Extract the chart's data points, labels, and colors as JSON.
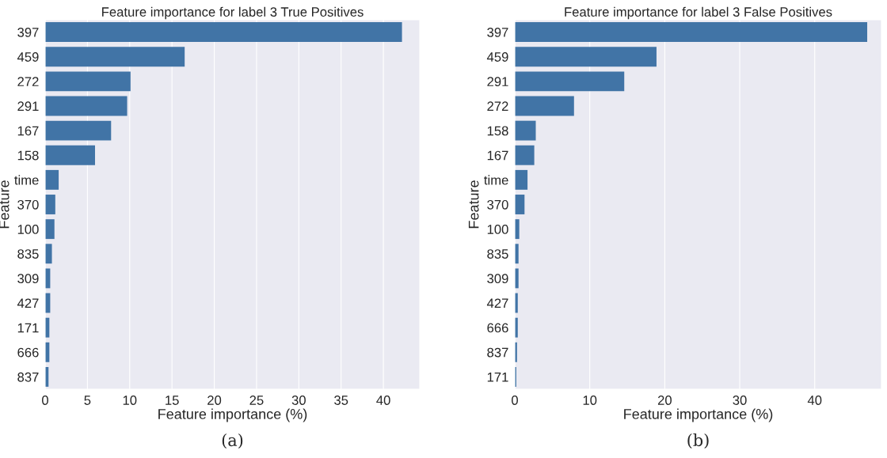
{
  "chart_data": [
    {
      "type": "bar",
      "orientation": "horizontal",
      "title": "Feature importance for label 3 True Positives",
      "xlabel": "Feature importance (%)",
      "ylabel": "Feature",
      "categories": [
        "397",
        "459",
        "272",
        "291",
        "167",
        "158",
        "time",
        "370",
        "100",
        "835",
        "309",
        "427",
        "171",
        "666",
        "837"
      ],
      "values": [
        42.2,
        16.5,
        10.1,
        9.7,
        7.8,
        5.9,
        1.6,
        1.2,
        1.1,
        0.8,
        0.6,
        0.6,
        0.5,
        0.5,
        0.4
      ],
      "color": "#4174a6",
      "xlim": [
        0,
        44.3
      ],
      "xticks": [
        0,
        5,
        10,
        15,
        20,
        25,
        30,
        35,
        40
      ],
      "grid": "x",
      "annotations": [
        "(a)"
      ]
    },
    {
      "type": "bar",
      "orientation": "horizontal",
      "title": "Feature importance for label 3 False Positives",
      "xlabel": "Feature importance (%)",
      "ylabel": "Feature",
      "categories": [
        "397",
        "459",
        "291",
        "272",
        "158",
        "167",
        "time",
        "370",
        "100",
        "835",
        "309",
        "427",
        "666",
        "837",
        "171"
      ],
      "values": [
        47.0,
        18.9,
        14.6,
        7.9,
        2.8,
        2.6,
        1.7,
        1.3,
        0.6,
        0.5,
        0.5,
        0.4,
        0.4,
        0.3,
        0.2
      ],
      "color": "#4174a6",
      "xlim": [
        0,
        48.9
      ],
      "xticks": [
        0,
        10,
        20,
        30,
        40
      ],
      "grid": "x",
      "annotations": [
        "(b)"
      ]
    }
  ]
}
